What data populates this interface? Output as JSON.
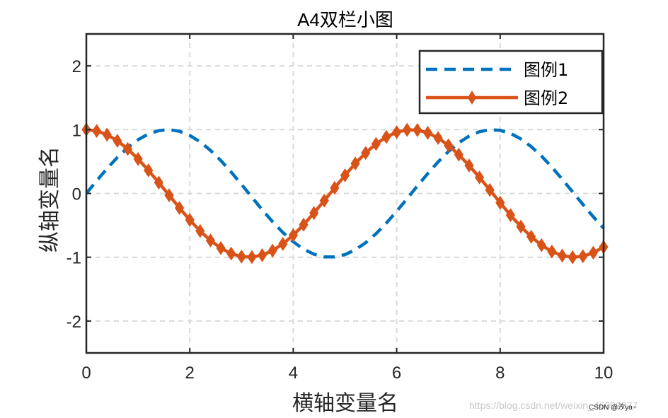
{
  "watermark": "https://blog.csdn.net/weixin_46090077",
  "credit": "CSDN @汐ya~",
  "chart_data": {
    "type": "line",
    "title": "A4双栏小图",
    "xlabel": "横轴变量名",
    "ylabel": "纵轴变量名",
    "xlim": [
      0,
      10
    ],
    "ylim": [
      -2.5,
      2.5
    ],
    "xticks": [
      0,
      2,
      4,
      6,
      8,
      10
    ],
    "yticks": [
      -2,
      -1,
      0,
      1,
      2
    ],
    "xtick_labels": [
      "0",
      "2",
      "4",
      "6",
      "8",
      "10"
    ],
    "ytick_labels": [
      "-2",
      "-1",
      "0",
      "1",
      "2"
    ],
    "grid": true,
    "legend_position": "top-right",
    "x": [
      0.0,
      0.2,
      0.4,
      0.6,
      0.8,
      1.0,
      1.2,
      1.4,
      1.6,
      1.8,
      2.0,
      2.2,
      2.4,
      2.6,
      2.8,
      3.0,
      3.2,
      3.4,
      3.6,
      3.8,
      4.0,
      4.2,
      4.4,
      4.6,
      4.8,
      5.0,
      5.2,
      5.4,
      5.6,
      5.8,
      6.0,
      6.2,
      6.4,
      6.6,
      6.8,
      7.0,
      7.2,
      7.4,
      7.6,
      7.8,
      8.0,
      8.2,
      8.4,
      8.6,
      8.8,
      9.0,
      9.2,
      9.4,
      9.6,
      9.8,
      10.0
    ],
    "series": [
      {
        "name": "图例1",
        "color": "#0072BD",
        "style": "dashed",
        "marker": "none",
        "values": [
          0.0,
          0.199,
          0.389,
          0.565,
          0.717,
          0.841,
          0.932,
          0.985,
          1.0,
          0.974,
          0.909,
          0.808,
          0.675,
          0.516,
          0.335,
          0.141,
          -0.058,
          -0.256,
          -0.443,
          -0.612,
          -0.757,
          -0.872,
          -0.952,
          -0.994,
          -0.996,
          -0.959,
          -0.883,
          -0.773,
          -0.631,
          -0.465,
          -0.279,
          -0.083,
          0.117,
          0.312,
          0.494,
          0.657,
          0.794,
          0.899,
          0.968,
          0.999,
          0.989,
          0.941,
          0.855,
          0.734,
          0.585,
          0.412,
          0.223,
          0.025,
          -0.174,
          -0.366,
          -0.544
        ]
      },
      {
        "name": "图例2",
        "color": "#D95319",
        "style": "solid",
        "marker": "diamond",
        "values": [
          1.0,
          0.98,
          0.921,
          0.825,
          0.697,
          0.54,
          0.362,
          0.17,
          -0.029,
          -0.227,
          -0.416,
          -0.589,
          -0.737,
          -0.857,
          -0.942,
          -0.99,
          -0.998,
          -0.967,
          -0.897,
          -0.791,
          -0.654,
          -0.49,
          -0.307,
          -0.112,
          0.087,
          0.284,
          0.469,
          0.635,
          0.776,
          0.886,
          0.96,
          0.997,
          0.993,
          0.95,
          0.869,
          0.754,
          0.608,
          0.438,
          0.251,
          0.054,
          -0.146,
          -0.34,
          -0.519,
          -0.679,
          -0.811,
          -0.911,
          -0.975,
          -1.0,
          -0.984,
          -0.93,
          -0.839
        ]
      }
    ]
  }
}
